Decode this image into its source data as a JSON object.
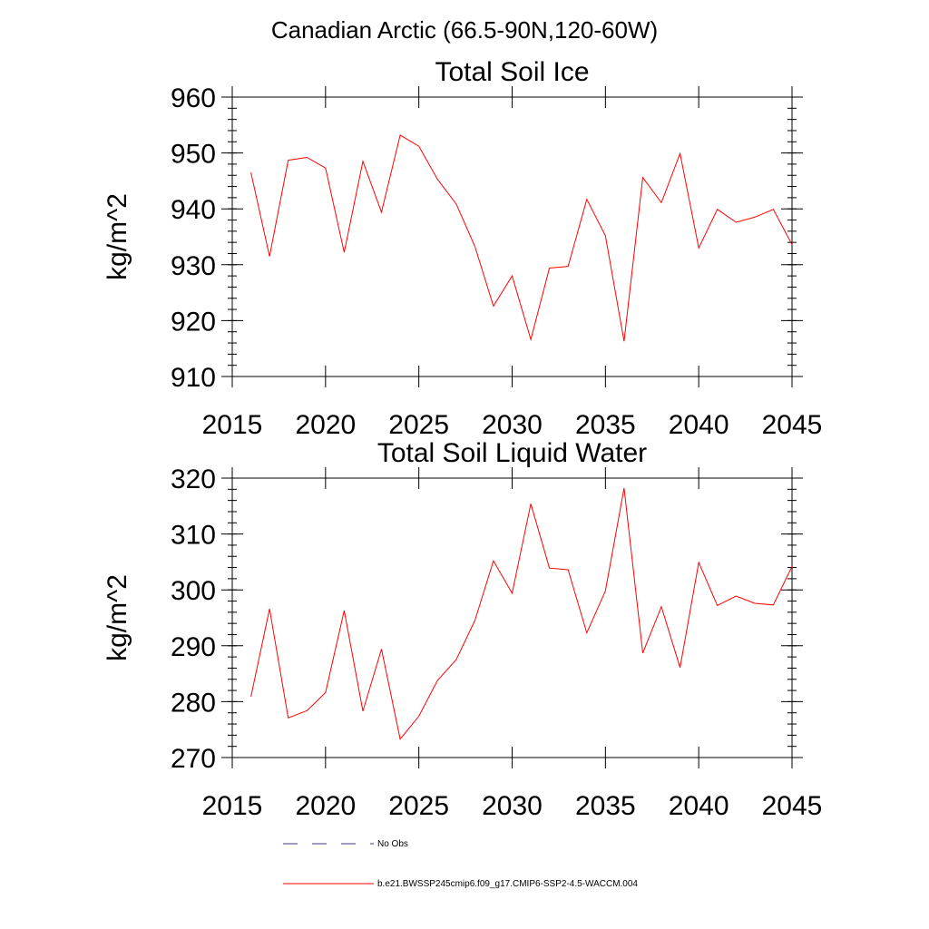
{
  "figure": {
    "suptitle": "Canadian Arctic (66.5-90N,120-60W)",
    "legend": {
      "entries": [
        {
          "label": "No Obs",
          "color": "#3a3a8c",
          "style": "dashed"
        },
        {
          "label": "b.e21.BWSSP245cmip6.f09_g17.CMIP6-SSP2-4.5-WACCM.004",
          "color": "#ff0000",
          "style": "solid"
        }
      ]
    }
  },
  "chart_data": [
    {
      "type": "line",
      "title": "Total Soil Ice",
      "xlabel": "",
      "ylabel": "kg/m^2",
      "xlim": [
        2015,
        2045
      ],
      "ylim": [
        910,
        960
      ],
      "xticks": [
        2015,
        2020,
        2025,
        2030,
        2035,
        2040,
        2045
      ],
      "yticks": [
        910,
        920,
        930,
        940,
        950,
        960
      ],
      "grid": false,
      "series": [
        {
          "color": "#ff0000",
          "x": [
            2016,
            2017,
            2018,
            2019,
            2020,
            2021,
            2022,
            2023,
            2024,
            2025,
            2026,
            2027,
            2028,
            2029,
            2030,
            2031,
            2032,
            2033,
            2034,
            2035,
            2036,
            2037,
            2038,
            2039,
            2040,
            2041,
            2042,
            2043,
            2044,
            2045
          ],
          "y": [
            946.5,
            931.5,
            948.7,
            949.2,
            947.3,
            932.2,
            948.5,
            939.4,
            953.2,
            951.2,
            945.3,
            940.9,
            933.3,
            922.6,
            928.0,
            916.6,
            929.4,
            929.7,
            941.7,
            935.2,
            916.3,
            945.6,
            941.1,
            949.9,
            933.0,
            939.9,
            937.6,
            938.5,
            939.9,
            933.6
          ]
        }
      ]
    },
    {
      "type": "line",
      "title": "Total Soil Liquid Water",
      "xlabel": "",
      "ylabel": "kg/m^2",
      "xlim": [
        2015,
        2045
      ],
      "ylim": [
        270,
        320
      ],
      "xticks": [
        2015,
        2020,
        2025,
        2030,
        2035,
        2040,
        2045
      ],
      "yticks": [
        270,
        280,
        290,
        300,
        310,
        320
      ],
      "grid": false,
      "series": [
        {
          "color": "#ff0000",
          "x": [
            2016,
            2017,
            2018,
            2019,
            2020,
            2021,
            2022,
            2023,
            2024,
            2025,
            2026,
            2027,
            2028,
            2029,
            2030,
            2031,
            2032,
            2033,
            2034,
            2035,
            2036,
            2037,
            2038,
            2039,
            2040,
            2041,
            2042,
            2043,
            2044,
            2045
          ],
          "y": [
            280.9,
            296.6,
            277.1,
            278.4,
            281.6,
            296.3,
            278.3,
            289.4,
            273.3,
            277.4,
            283.8,
            287.5,
            294.5,
            305.2,
            299.4,
            315.4,
            303.9,
            303.6,
            292.3,
            299.8,
            318.2,
            288.7,
            297.0,
            286.1,
            304.9,
            297.2,
            298.9,
            297.6,
            297.3,
            304.2
          ]
        }
      ]
    }
  ]
}
